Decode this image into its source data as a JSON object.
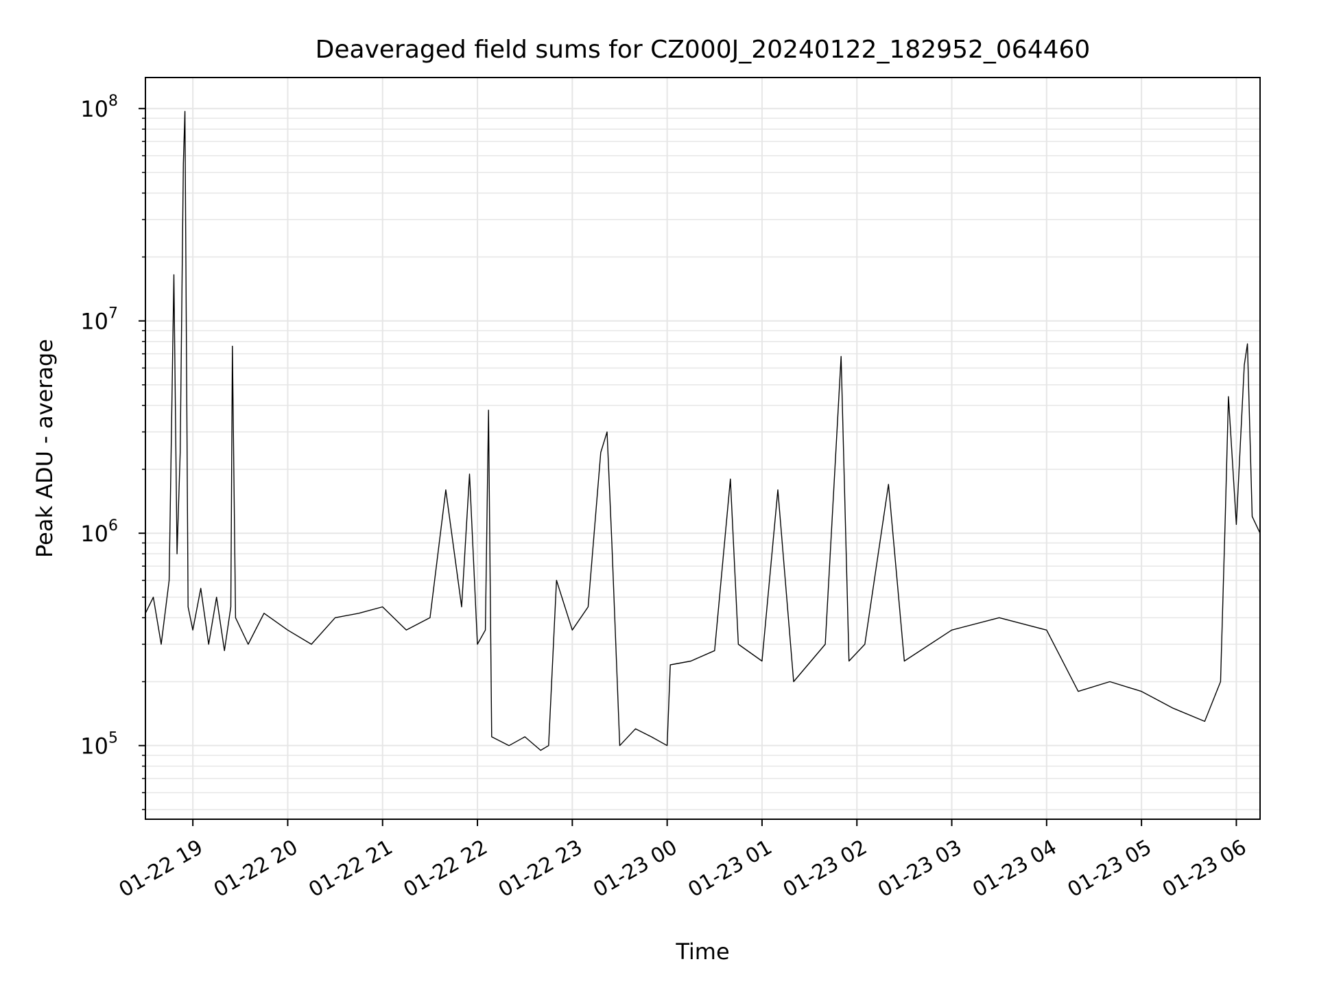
{
  "chart_data": {
    "type": "line",
    "title": "Deaveraged field sums for CZ000J_20240122_182952_064460",
    "xlabel": "Time",
    "ylabel": "Peak ADU - average",
    "yscale": "log",
    "ylim": [
      45000,
      140000000
    ],
    "xlim": [
      "2024-01-22 18:30",
      "2024-01-23 06:15"
    ],
    "grid": true,
    "legend": "none",
    "x_ticks": [
      {
        "t": "2024-01-22 19:00",
        "label": "01-22 19"
      },
      {
        "t": "2024-01-22 20:00",
        "label": "01-22 20"
      },
      {
        "t": "2024-01-22 21:00",
        "label": "01-22 21"
      },
      {
        "t": "2024-01-22 22:00",
        "label": "01-22 22"
      },
      {
        "t": "2024-01-22 23:00",
        "label": "01-22 23"
      },
      {
        "t": "2024-01-23 00:00",
        "label": "01-23 00"
      },
      {
        "t": "2024-01-23 01:00",
        "label": "01-23 01"
      },
      {
        "t": "2024-01-23 02:00",
        "label": "01-23 02"
      },
      {
        "t": "2024-01-23 03:00",
        "label": "01-23 03"
      },
      {
        "t": "2024-01-23 04:00",
        "label": "01-23 04"
      },
      {
        "t": "2024-01-23 05:00",
        "label": "01-23 05"
      },
      {
        "t": "2024-01-23 06:00",
        "label": "01-23 06"
      }
    ],
    "y_ticks": [
      {
        "value": 100000,
        "base": "10",
        "exp": "5"
      },
      {
        "value": 1000000,
        "base": "10",
        "exp": "6"
      },
      {
        "value": 10000000,
        "base": "10",
        "exp": "7"
      },
      {
        "value": 100000000,
        "base": "10",
        "exp": "8"
      }
    ],
    "colors": {
      "line": "#000000",
      "grid": "#e6e6e6",
      "axis": "#000000"
    },
    "series": [
      {
        "points": [
          [
            "2024-01-22 18:30",
            420000
          ],
          [
            "2024-01-22 18:35",
            500000
          ],
          [
            "2024-01-22 18:40",
            300000
          ],
          [
            "2024-01-22 18:45",
            600000
          ],
          [
            "2024-01-22 18:48",
            16500000
          ],
          [
            "2024-01-22 18:50",
            800000
          ],
          [
            "2024-01-22 18:52",
            2400000
          ],
          [
            "2024-01-22 18:54",
            55000000
          ],
          [
            "2024-01-22 18:55",
            97000000
          ],
          [
            "2024-01-22 18:57",
            450000
          ],
          [
            "2024-01-22 19:00",
            350000
          ],
          [
            "2024-01-22 19:05",
            550000
          ],
          [
            "2024-01-22 19:10",
            300000
          ],
          [
            "2024-01-22 19:15",
            500000
          ],
          [
            "2024-01-22 19:20",
            280000
          ],
          [
            "2024-01-22 19:24",
            450000
          ],
          [
            "2024-01-22 19:25",
            7600000
          ],
          [
            "2024-01-22 19:27",
            400000
          ],
          [
            "2024-01-22 19:35",
            300000
          ],
          [
            "2024-01-22 19:45",
            420000
          ],
          [
            "2024-01-22 20:00",
            350000
          ],
          [
            "2024-01-22 20:15",
            300000
          ],
          [
            "2024-01-22 20:30",
            400000
          ],
          [
            "2024-01-22 20:45",
            420000
          ],
          [
            "2024-01-22 21:00",
            450000
          ],
          [
            "2024-01-22 21:15",
            350000
          ],
          [
            "2024-01-22 21:30",
            400000
          ],
          [
            "2024-01-22 21:40",
            1600000
          ],
          [
            "2024-01-22 21:50",
            450000
          ],
          [
            "2024-01-22 21:55",
            1900000
          ],
          [
            "2024-01-22 22:00",
            300000
          ],
          [
            "2024-01-22 22:05",
            350000
          ],
          [
            "2024-01-22 22:07",
            3800000
          ],
          [
            "2024-01-22 22:09",
            110000
          ],
          [
            "2024-01-22 22:20",
            100000
          ],
          [
            "2024-01-22 22:30",
            110000
          ],
          [
            "2024-01-22 22:40",
            95000
          ],
          [
            "2024-01-22 22:45",
            100000
          ],
          [
            "2024-01-22 22:50",
            600000
          ],
          [
            "2024-01-22 23:00",
            350000
          ],
          [
            "2024-01-22 23:10",
            450000
          ],
          [
            "2024-01-22 23:18",
            2400000
          ],
          [
            "2024-01-22 23:22",
            3000000
          ],
          [
            "2024-01-22 23:25",
            900000
          ],
          [
            "2024-01-22 23:30",
            100000
          ],
          [
            "2024-01-22 23:40",
            120000
          ],
          [
            "2024-01-22 23:50",
            110000
          ],
          [
            "2024-01-23 00:00",
            100000
          ],
          [
            "2024-01-23 00:02",
            240000
          ],
          [
            "2024-01-23 00:15",
            250000
          ],
          [
            "2024-01-23 00:30",
            280000
          ],
          [
            "2024-01-23 00:40",
            1800000
          ],
          [
            "2024-01-23 00:45",
            300000
          ],
          [
            "2024-01-23 01:00",
            250000
          ],
          [
            "2024-01-23 01:10",
            1600000
          ],
          [
            "2024-01-23 01:20",
            200000
          ],
          [
            "2024-01-23 01:40",
            300000
          ],
          [
            "2024-01-23 01:50",
            6800000
          ],
          [
            "2024-01-23 01:55",
            250000
          ],
          [
            "2024-01-23 02:05",
            300000
          ],
          [
            "2024-01-23 02:20",
            1700000
          ],
          [
            "2024-01-23 02:30",
            250000
          ],
          [
            "2024-01-23 03:00",
            350000
          ],
          [
            "2024-01-23 03:30",
            400000
          ],
          [
            "2024-01-23 04:00",
            350000
          ],
          [
            "2024-01-23 04:20",
            180000
          ],
          [
            "2024-01-23 04:40",
            200000
          ],
          [
            "2024-01-23 05:00",
            180000
          ],
          [
            "2024-01-23 05:20",
            150000
          ],
          [
            "2024-01-23 05:40",
            130000
          ],
          [
            "2024-01-23 05:50",
            200000
          ],
          [
            "2024-01-23 05:53",
            1200000
          ],
          [
            "2024-01-23 05:55",
            4400000
          ],
          [
            "2024-01-23 06:00",
            1100000
          ],
          [
            "2024-01-23 06:05",
            6200000
          ],
          [
            "2024-01-23 06:07",
            7800000
          ],
          [
            "2024-01-23 06:10",
            1200000
          ],
          [
            "2024-01-23 06:15",
            1000000
          ]
        ]
      }
    ]
  }
}
